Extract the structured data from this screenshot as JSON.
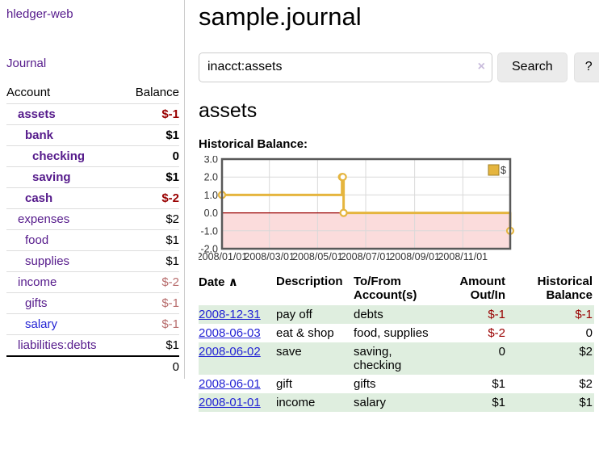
{
  "sidebar": {
    "app_title": "hledger-web",
    "journal_link": "Journal",
    "table": {
      "account_header": "Account",
      "balance_header": "Balance"
    },
    "accounts": [
      {
        "label": "assets",
        "indent": 1,
        "bold": true,
        "balance": "$-1",
        "balance_class": "neg-strong"
      },
      {
        "label": "bank",
        "indent": 2,
        "bold": true,
        "balance": "$1",
        "balance_class": ""
      },
      {
        "label": "checking",
        "indent": 3,
        "bold": true,
        "balance": "0",
        "balance_class": ""
      },
      {
        "label": "saving",
        "indent": 3,
        "bold": true,
        "balance": "$1",
        "balance_class": ""
      },
      {
        "label": "cash",
        "indent": 2,
        "bold": true,
        "balance": "$-2",
        "balance_class": "neg-strong"
      },
      {
        "label": "expenses",
        "indent": 1,
        "bold": false,
        "balance": "$2",
        "balance_class": ""
      },
      {
        "label": "food",
        "indent": 2,
        "bold": false,
        "balance": "$1",
        "balance_class": ""
      },
      {
        "label": "supplies",
        "indent": 2,
        "bold": false,
        "balance": "$1",
        "balance_class": ""
      },
      {
        "label": "income",
        "indent": 1,
        "bold": false,
        "balance": "$-2",
        "balance_class": "neg-soft"
      },
      {
        "label": "gifts",
        "indent": 2,
        "bold": false,
        "balance": "$-1",
        "balance_class": "neg-soft"
      },
      {
        "label": "salary",
        "indent": 2,
        "bold": false,
        "balance": "$-1",
        "balance_class": "neg-soft",
        "link_variant": "unvisited"
      },
      {
        "label": "liabilities:debts",
        "indent": 1,
        "bold": false,
        "balance": "$1",
        "balance_class": ""
      }
    ],
    "total": "0"
  },
  "header": {
    "title": "sample.journal"
  },
  "search": {
    "value": "inacct:assets",
    "clear_icon": "×",
    "button_label": "Search",
    "help_label": "?"
  },
  "account_page": {
    "title": "assets",
    "chart_label": "Historical Balance:"
  },
  "chart_data": {
    "type": "line",
    "step": true,
    "title": "Historical Balance:",
    "series": [
      {
        "name": "$",
        "color": "#e5b53e",
        "points": [
          [
            "2008-01-01",
            1
          ],
          [
            "2008-06-01",
            2
          ],
          [
            "2008-06-02",
            2
          ],
          [
            "2008-06-03",
            0
          ],
          [
            "2008-12-31",
            -1
          ]
        ]
      }
    ],
    "x_range": [
      "2008-01-01",
      "2008-12-31"
    ],
    "ylim": [
      -2,
      3
    ],
    "y_ticks": [
      "3.0",
      "2.0",
      "1.0",
      "0.0",
      "-1.0",
      "-2.0"
    ],
    "x_ticks": [
      "2008/01/01",
      "2008/03/01",
      "2008/05/01",
      "2008/07/01",
      "2008/09/01",
      "2008/11/01"
    ],
    "grid": true,
    "negative_region_color": "#fbdcdc",
    "zero_line_color": "#990000",
    "border_color": "#595959",
    "legend": {
      "label": "$",
      "position": "top-right"
    }
  },
  "register": {
    "headers": {
      "date": "Date",
      "description": "Description",
      "accounts": "To/From Account(s)",
      "amount": "Amount Out/In",
      "balance": "Historical Balance"
    },
    "sort_icon": "∧",
    "rows": [
      {
        "date": "2008-12-31",
        "description": "pay off",
        "accounts": "debts",
        "amount": "$-1",
        "amount_negative": true,
        "balance": "$-1",
        "balance_negative": true
      },
      {
        "date": "2008-06-03",
        "description": "eat & shop",
        "accounts": "food, supplies",
        "amount": "$-2",
        "amount_negative": true,
        "balance": "0",
        "balance_negative": false
      },
      {
        "date": "2008-06-02",
        "description": "save",
        "accounts": "saving, checking",
        "amount": "0",
        "amount_negative": false,
        "balance": "$2",
        "balance_negative": false
      },
      {
        "date": "2008-06-01",
        "description": "gift",
        "accounts": "gifts",
        "amount": "$1",
        "amount_negative": false,
        "balance": "$2",
        "balance_negative": false
      },
      {
        "date": "2008-01-01",
        "description": "income",
        "accounts": "salary",
        "amount": "$1",
        "amount_negative": false,
        "balance": "$1",
        "balance_negative": false
      }
    ]
  },
  "colors": {
    "link_purple": "#551a8b",
    "link_blue": "#2323d4",
    "negative_strong": "#990000",
    "negative_soft": "#b76c6c",
    "row_stripe_green": "#dfeedf",
    "chart_line_gold": "#e5b53e",
    "chart_negative_pink": "#fbdcdc",
    "chart_zero_line": "#990000"
  }
}
